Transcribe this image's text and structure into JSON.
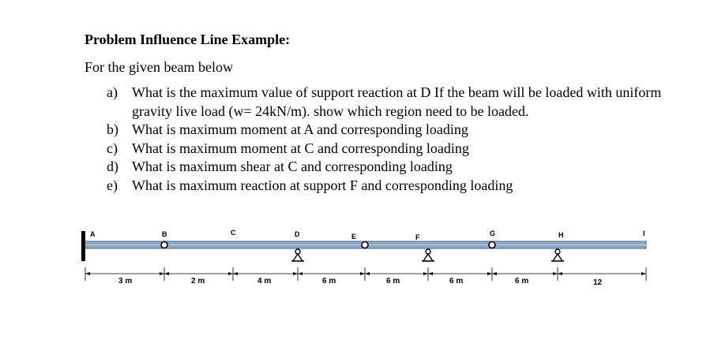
{
  "title": "Problem Influence Line Example:",
  "intro": "For the given beam below",
  "questions": [
    {
      "letter": "a)",
      "text": "What is the maximum value of support reaction at D If the beam will be loaded with uniform gravity live load (w= 24kN/m). show which region need to be loaded."
    },
    {
      "letter": "b)",
      "text": "What is maximum moment at A and corresponding loading"
    },
    {
      "letter": "c)",
      "text": "What is maximum moment at C and corresponding loading"
    },
    {
      "letter": "d)",
      "text": "What is maximum shear at C and corresponding loading"
    },
    {
      "letter": "e)",
      "text": "What is maximum reaction at support F and corresponding loading"
    }
  ],
  "beam": {
    "points": [
      {
        "label": "A",
        "support": "fixed"
      },
      {
        "label": "B",
        "support": "hinge"
      },
      {
        "label": "C",
        "support": "none"
      },
      {
        "label": "D",
        "support": "roller"
      },
      {
        "label": "E",
        "support": "hinge"
      },
      {
        "label": "F",
        "support": "roller"
      },
      {
        "label": "G",
        "support": "hinge"
      },
      {
        "label": "H",
        "support": "roller"
      },
      {
        "label": "I",
        "support": "none"
      }
    ],
    "spans": [
      "3 m",
      "2 m",
      "4 m",
      "6 m",
      "6 m",
      "6 m",
      "6 m",
      "12"
    ],
    "colors": {
      "beam_fill": "#8ea9c4",
      "beam_edge": "#4a6a8a",
      "line": "#000000"
    }
  }
}
